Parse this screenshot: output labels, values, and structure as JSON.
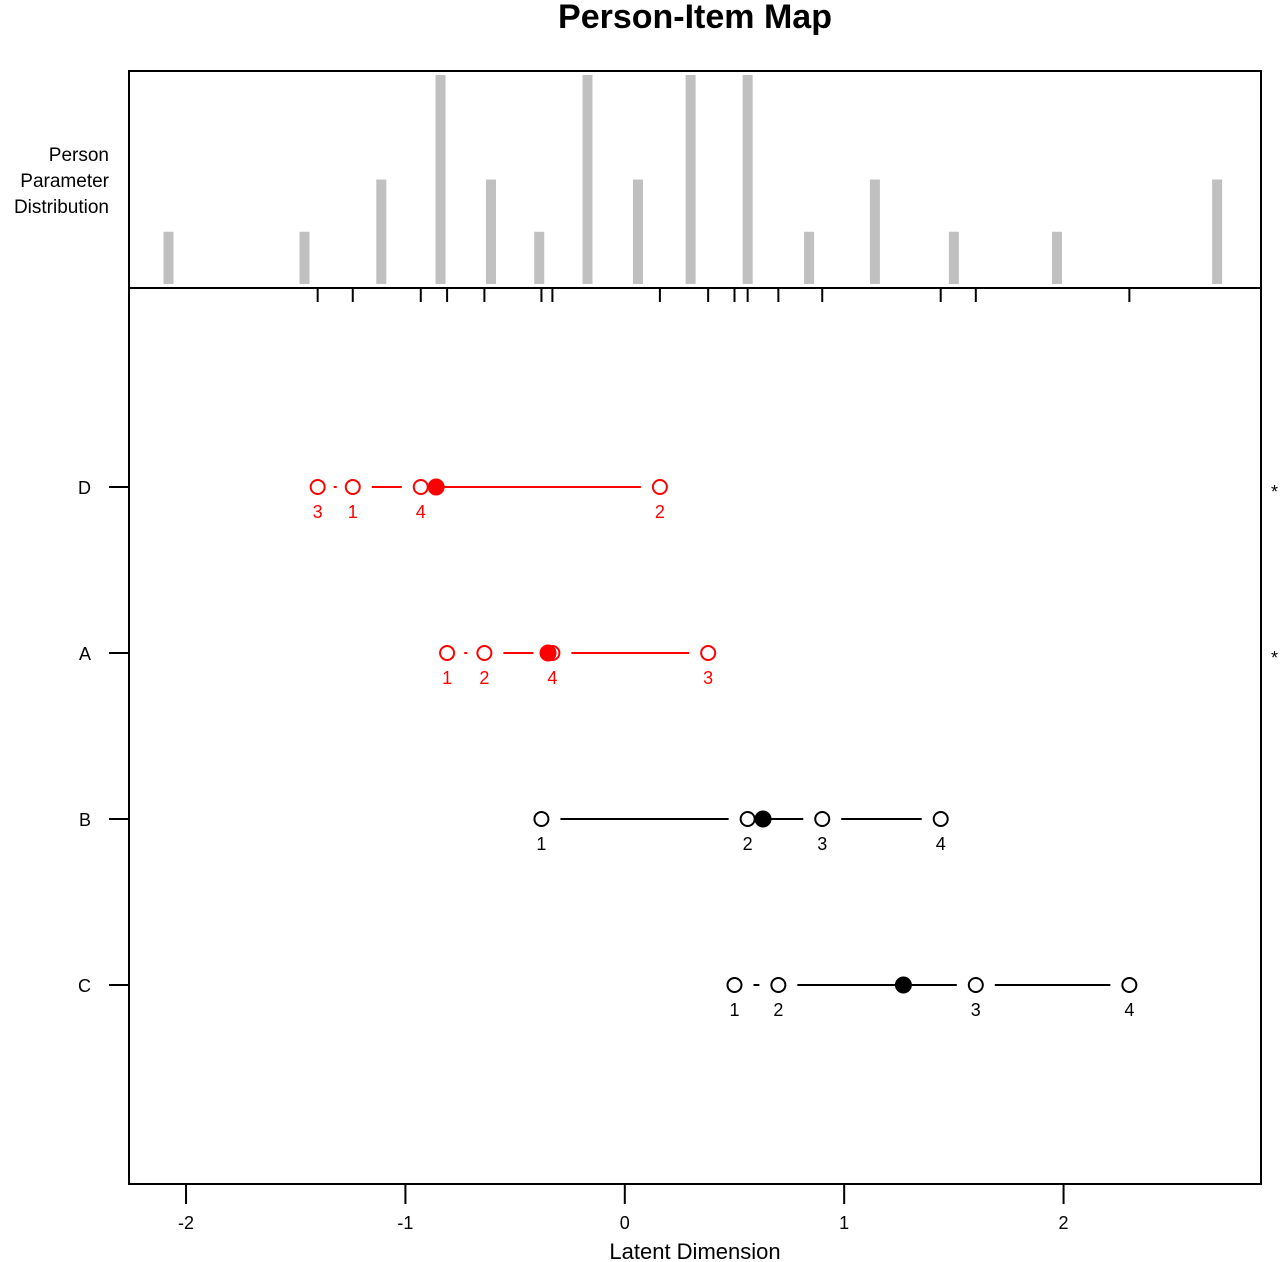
{
  "chart_data": {
    "type": "scatter",
    "title": "Person-Item Map",
    "xlabel": "Latent Dimension",
    "top_panel_label": [
      "Person",
      "Parameter",
      "Distribution"
    ],
    "xlim": [
      -2.26,
      2.9
    ],
    "x_ticks": [
      -2,
      -1,
      0,
      1,
      2
    ],
    "x_tick_labels": [
      "-2",
      "-1",
      "0",
      "1",
      "2"
    ],
    "person_distribution": [
      {
        "x": -2.08,
        "count": 1
      },
      {
        "x": -1.46,
        "count": 1
      },
      {
        "x": -1.11,
        "count": 2
      },
      {
        "x": -0.84,
        "count": 4
      },
      {
        "x": -0.61,
        "count": 2
      },
      {
        "x": -0.39,
        "count": 1
      },
      {
        "x": -0.17,
        "count": 4
      },
      {
        "x": 0.06,
        "count": 2
      },
      {
        "x": 0.3,
        "count": 4
      },
      {
        "x": 0.56,
        "count": 4
      },
      {
        "x": 0.84,
        "count": 1
      },
      {
        "x": 1.14,
        "count": 2
      },
      {
        "x": 1.5,
        "count": 1
      },
      {
        "x": 1.97,
        "count": 1
      },
      {
        "x": 2.7,
        "count": 2
      }
    ],
    "threshold_ticks": [
      -1.4,
      -1.24,
      -0.93,
      -0.81,
      -0.64,
      -0.38,
      -0.33,
      0.16,
      0.38,
      0.5,
      0.56,
      0.7,
      0.9,
      1.44,
      1.6,
      2.3
    ],
    "items": [
      {
        "name": "D",
        "color": "#ff0000",
        "location": -0.86,
        "flag": "*",
        "thresholds": [
          {
            "label": "3",
            "x": -1.4
          },
          {
            "label": "1",
            "x": -1.24
          },
          {
            "label": "4",
            "x": -0.93
          },
          {
            "label": "2",
            "x": 0.16
          }
        ]
      },
      {
        "name": "A",
        "color": "#ff0000",
        "location": -0.35,
        "flag": "*",
        "thresholds": [
          {
            "label": "1",
            "x": -0.81
          },
          {
            "label": "2",
            "x": -0.64
          },
          {
            "label": "4",
            "x": -0.33
          },
          {
            "label": "3",
            "x": 0.38
          }
        ]
      },
      {
        "name": "B",
        "color": "#000000",
        "location": 0.63,
        "flag": "",
        "thresholds": [
          {
            "label": "1",
            "x": -0.38
          },
          {
            "label": "2",
            "x": 0.56
          },
          {
            "label": "3",
            "x": 0.9
          },
          {
            "label": "4",
            "x": 1.44
          }
        ]
      },
      {
        "name": "C",
        "color": "#000000",
        "location": 1.27,
        "flag": "",
        "thresholds": [
          {
            "label": "1",
            "x": 0.5
          },
          {
            "label": "2",
            "x": 0.7
          },
          {
            "label": "3",
            "x": 1.6
          },
          {
            "label": "4",
            "x": 2.3
          }
        ]
      }
    ],
    "colors": {
      "bars": "#c0c0c0",
      "axis": "#000000",
      "misfit": "#ff0000",
      "fit": "#000000"
    }
  }
}
